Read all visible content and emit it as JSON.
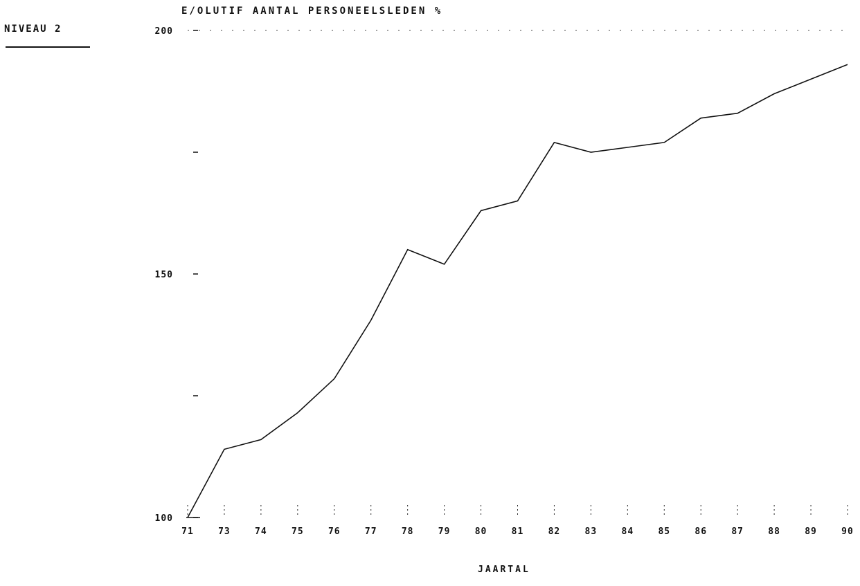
{
  "chart_data": {
    "type": "line",
    "title": "E/OLUTIF AANTAL PERSONEELSLEDEN %",
    "subtitle": "NIVEAU 2",
    "xlabel": "JAARTAL",
    "ylabel": "",
    "x_ticks": [
      "71",
      "73",
      "74",
      "75",
      "76",
      "77",
      "78",
      "79",
      "80",
      "81",
      "82",
      "83",
      "84",
      "85",
      "86",
      "87",
      "88",
      "89",
      "90"
    ],
    "y_ticks": [
      {
        "value": 200,
        "label": "200"
      },
      {
        "value": 175,
        "label": ""
      },
      {
        "value": 150,
        "label": "150"
      },
      {
        "value": 125,
        "label": ""
      },
      {
        "value": 100,
        "label": "100"
      }
    ],
    "ylim": [
      100,
      200
    ],
    "grid": false,
    "series": [
      {
        "values": [
          100,
          114,
          116,
          121.5,
          128.5,
          140.5,
          155,
          152,
          163,
          165,
          177,
          175,
          176,
          177,
          182,
          183,
          187,
          190,
          193
        ]
      }
    ]
  }
}
